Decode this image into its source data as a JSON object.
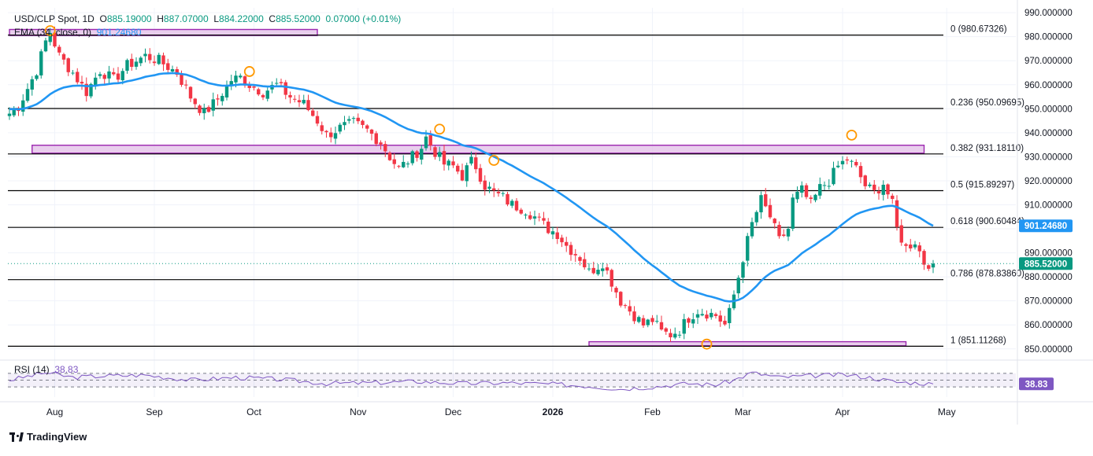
{
  "header": {
    "symbol": "USD/CLP Spot, 1D",
    "open_label": "O",
    "open": "885.19000",
    "high_label": "H",
    "high": "887.07000",
    "low_label": "L",
    "low": "884.22000",
    "close_label": "C",
    "close": "885.52000",
    "change": "0.07000 (+0.01%)",
    "ema_label": "EMA (34, close, 0)",
    "ema_value": "901.24680",
    "rsi_label": "RSI (14)",
    "rsi_value": "38.83"
  },
  "footer": {
    "brand": "TradingView"
  },
  "colors": {
    "up": "#089981",
    "down": "#f23645",
    "ema": "#2196f3",
    "zone_fill": "#e1bee7",
    "zone_border": "#9c27b0",
    "fib": "#000000",
    "marker": "#ff9800",
    "rsi": "#7e57c2",
    "grid": "#f0f3fa",
    "price_badge": "#089981",
    "ema_badge": "#2196f3",
    "rsi_badge": "#7e57c2"
  },
  "chart_data": {
    "type": "candlestick",
    "title": "USD/CLP Spot, 1D",
    "ylim": [
      846,
      992
    ],
    "yticks": [
      "990.000000",
      "980.000000",
      "970.000000",
      "960.000000",
      "950.000000",
      "940.000000",
      "930.000000",
      "920.000000",
      "910.000000",
      "900.000000",
      "890.000000",
      "880.000000",
      "870.000000",
      "860.000000",
      "850.000000"
    ],
    "x_labels": [
      {
        "label": "Aug",
        "bar": 10
      },
      {
        "label": "Sep",
        "bar": 32
      },
      {
        "label": "Oct",
        "bar": 54
      },
      {
        "label": "Nov",
        "bar": 77
      },
      {
        "label": "Dec",
        "bar": 98
      },
      {
        "label": "2026",
        "bar": 120
      },
      {
        "label": "Feb",
        "bar": 142
      },
      {
        "label": "Mar",
        "bar": 162
      },
      {
        "label": "Apr",
        "bar": 184
      },
      {
        "label": "May",
        "bar": 207
      }
    ],
    "close_anchors": [
      [
        0,
        948
      ],
      [
        2,
        951
      ],
      [
        6,
        966
      ],
      [
        8,
        978
      ],
      [
        9,
        982
      ],
      [
        11,
        972
      ],
      [
        14,
        965
      ],
      [
        17,
        957
      ],
      [
        20,
        966
      ],
      [
        23,
        962
      ],
      [
        26,
        968
      ],
      [
        30,
        972
      ],
      [
        33,
        970
      ],
      [
        37,
        965
      ],
      [
        40,
        955
      ],
      [
        43,
        948
      ],
      [
        46,
        954
      ],
      [
        49,
        962
      ],
      [
        51,
        963
      ],
      [
        53,
        960
      ],
      [
        56,
        957
      ],
      [
        59,
        960
      ],
      [
        62,
        955
      ],
      [
        65,
        952
      ],
      [
        68,
        945
      ],
      [
        70,
        939
      ],
      [
        73,
        942
      ],
      [
        76,
        944
      ],
      [
        79,
        941
      ],
      [
        82,
        936
      ],
      [
        84,
        930
      ],
      [
        86,
        925
      ],
      [
        89,
        930
      ],
      [
        91,
        934
      ],
      [
        92,
        938
      ],
      [
        94,
        932
      ],
      [
        96,
        927
      ],
      [
        98,
        926
      ],
      [
        100,
        922
      ],
      [
        102,
        928
      ],
      [
        103,
        926
      ],
      [
        105,
        918
      ],
      [
        107,
        915
      ],
      [
        109,
        913
      ],
      [
        111,
        910
      ],
      [
        114,
        908
      ],
      [
        116,
        905
      ],
      [
        119,
        900
      ],
      [
        121,
        898
      ],
      [
        123,
        893
      ],
      [
        126,
        888
      ],
      [
        128,
        882
      ],
      [
        131,
        886
      ],
      [
        133,
        878
      ],
      [
        135,
        870
      ],
      [
        138,
        864
      ],
      [
        140,
        860
      ],
      [
        142,
        862
      ],
      [
        144,
        857
      ],
      [
        146,
        856
      ],
      [
        148,
        858
      ],
      [
        150,
        863
      ],
      [
        152,
        866
      ],
      [
        154,
        865
      ],
      [
        156,
        864
      ],
      [
        158,
        860
      ],
      [
        159,
        865
      ],
      [
        161,
        880
      ],
      [
        162,
        888
      ],
      [
        164,
        902
      ],
      [
        166,
        912
      ],
      [
        168,
        905
      ],
      [
        170,
        895
      ],
      [
        172,
        900
      ],
      [
        173,
        912
      ],
      [
        175,
        916
      ],
      [
        177,
        910
      ],
      [
        179,
        917
      ],
      [
        181,
        920
      ],
      [
        183,
        926
      ],
      [
        185,
        929
      ],
      [
        187,
        925
      ],
      [
        189,
        918
      ],
      [
        191,
        915
      ],
      [
        193,
        919
      ],
      [
        195,
        910
      ],
      [
        196,
        900
      ],
      [
        198,
        892
      ],
      [
        200,
        895
      ],
      [
        202,
        886
      ],
      [
        204,
        885.52
      ]
    ],
    "ema_period": 34,
    "ema_last": 901.2468,
    "fibonacci": [
      {
        "ratio": "0",
        "price": 980.67326,
        "label": "0 (980.67326)"
      },
      {
        "ratio": "0.236",
        "price": 950.09695,
        "label": "0.236 (950.09695)"
      },
      {
        "ratio": "0.382",
        "price": 931.1811,
        "label": "0.382 (931.18110)"
      },
      {
        "ratio": "0.5",
        "price": 915.89297,
        "label": "0.5 (915.89297)"
      },
      {
        "ratio": "0.618",
        "price": 900.60484,
        "label": "0.618 (900.60484)"
      },
      {
        "ratio": "0.786",
        "price": 878.8386,
        "label": "0.786 (878.83860)"
      },
      {
        "ratio": "1",
        "price": 851.11268,
        "label": "1 (851.11268)"
      }
    ],
    "zones": [
      {
        "from_bar": 0,
        "to_bar": 68,
        "top": 983,
        "bottom": 980.5
      },
      {
        "from_bar": 5,
        "to_bar": 202,
        "top": 934.8,
        "bottom": 931.5
      },
      {
        "from_bar": 128,
        "to_bar": 198,
        "top": 853.0,
        "bottom": 851.3
      }
    ],
    "markers": [
      {
        "bar": 9,
        "price": 982.5
      },
      {
        "bar": 53,
        "price": 965.5
      },
      {
        "bar": 95,
        "price": 941.5
      },
      {
        "bar": 107,
        "price": 928.5
      },
      {
        "bar": 154,
        "price": 852.0
      },
      {
        "bar": 186,
        "price": 939.0
      }
    ],
    "rsi": {
      "period": 14,
      "last": 38.83,
      "anchors": [
        [
          0,
          50
        ],
        [
          8,
          72
        ],
        [
          14,
          58
        ],
        [
          20,
          62
        ],
        [
          30,
          65
        ],
        [
          40,
          50
        ],
        [
          50,
          58
        ],
        [
          60,
          52
        ],
        [
          70,
          40
        ],
        [
          80,
          42
        ],
        [
          90,
          46
        ],
        [
          100,
          40
        ],
        [
          110,
          42
        ],
        [
          120,
          38
        ],
        [
          128,
          32
        ],
        [
          135,
          24
        ],
        [
          142,
          30
        ],
        [
          150,
          40
        ],
        [
          156,
          36
        ],
        [
          160,
          50
        ],
        [
          164,
          72
        ],
        [
          170,
          58
        ],
        [
          176,
          62
        ],
        [
          184,
          66
        ],
        [
          190,
          58
        ],
        [
          196,
          44
        ],
        [
          200,
          42
        ],
        [
          204,
          38.83
        ]
      ],
      "levels": [
        70,
        50,
        30
      ]
    },
    "last_price": 885.52
  }
}
